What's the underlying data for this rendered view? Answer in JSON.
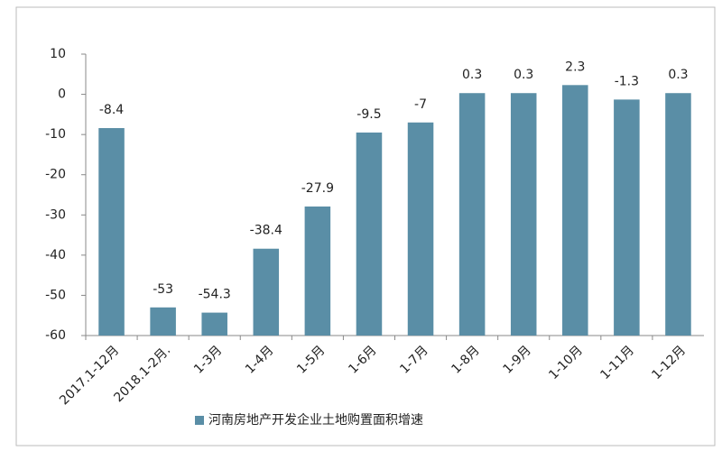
{
  "chart_data": {
    "type": "bar",
    "categories": [
      "2017.1-12月",
      "2018.1-2月.",
      "1-3月",
      "1-4月",
      "1-5月",
      "1-6月",
      "1-7月",
      "1-8月",
      "1-9月",
      "1-10月",
      "1-11月",
      "1-12月"
    ],
    "series": [
      {
        "name": "河南房地产开发企业土地购置面积增速",
        "color": "#5a8ea6",
        "values": [
          -8.4,
          -53,
          -54.3,
          -38.4,
          -27.9,
          -9.5,
          -7,
          0.3,
          0.3,
          2.3,
          -1.3,
          0.3
        ]
      }
    ],
    "ylim": [
      -60,
      10
    ],
    "yticks": [
      10,
      0,
      -10,
      -20,
      -30,
      -40,
      -50,
      -60
    ],
    "grid": false,
    "legend": "bottom"
  }
}
